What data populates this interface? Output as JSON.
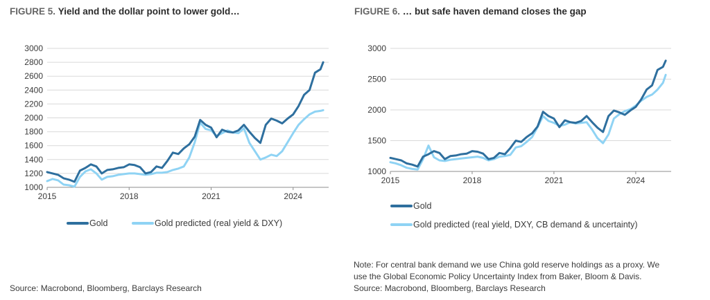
{
  "colors": {
    "gold": "#2e6f9e",
    "predicted": "#8fd3f4",
    "grid": "#d9d9d9",
    "axis": "#8c8c8c"
  },
  "figure5": {
    "number": "FIGURE 5.",
    "title": "Yield and the dollar point to lower gold…",
    "source": "Source: Macrobond, Bloomberg, Barclays Research"
  },
  "figure6": {
    "number": "FIGURE 6.",
    "title": "… but safe haven demand closes the gap",
    "note_line1": "Note: For central bank demand we use China gold reserve holdings as a proxy. We",
    "note_line2": "use the Global Economic Policy Uncertainty Index from Baker, Bloom & Davis.",
    "note_line3": "Source: Macrobond, Bloomberg, Barclays Research"
  },
  "chart_data": [
    {
      "type": "line",
      "title": "Yield and the dollar point to lower gold…",
      "xlabel": "",
      "ylabel": "",
      "xlim": [
        2015.0,
        2025.3
      ],
      "ylim": [
        1000,
        3000
      ],
      "yticks": [
        1000,
        1200,
        1400,
        1600,
        1800,
        2000,
        2200,
        2400,
        2600,
        2800,
        3000
      ],
      "xticks": [
        2015,
        2018,
        2021,
        2024
      ],
      "grid": true,
      "legend_position": "bottom",
      "series": [
        {
          "name": "Gold",
          "x": [
            2015.0,
            2015.2,
            2015.4,
            2015.6,
            2015.8,
            2016.0,
            2016.2,
            2016.4,
            2016.6,
            2016.8,
            2017.0,
            2017.2,
            2017.4,
            2017.6,
            2017.8,
            2018.0,
            2018.2,
            2018.4,
            2018.6,
            2018.8,
            2019.0,
            2019.2,
            2019.4,
            2019.6,
            2019.8,
            2020.0,
            2020.2,
            2020.4,
            2020.6,
            2020.8,
            2021.0,
            2021.2,
            2021.4,
            2021.6,
            2021.8,
            2022.0,
            2022.2,
            2022.4,
            2022.6,
            2022.8,
            2023.0,
            2023.2,
            2023.4,
            2023.6,
            2023.8,
            2024.0,
            2024.2,
            2024.4,
            2024.6,
            2024.8,
            2025.0,
            2025.1
          ],
          "values": [
            1220,
            1200,
            1180,
            1130,
            1110,
            1080,
            1240,
            1280,
            1330,
            1300,
            1200,
            1250,
            1260,
            1280,
            1290,
            1330,
            1320,
            1290,
            1200,
            1220,
            1300,
            1280,
            1380,
            1500,
            1480,
            1560,
            1620,
            1730,
            1970,
            1900,
            1860,
            1720,
            1830,
            1800,
            1790,
            1820,
            1900,
            1800,
            1710,
            1640,
            1900,
            1990,
            1960,
            1920,
            1990,
            2050,
            2170,
            2330,
            2400,
            2650,
            2700,
            2800
          ]
        },
        {
          "name": "Gold predicted (real yield & DXY)",
          "x": [
            2015.0,
            2015.2,
            2015.4,
            2015.6,
            2015.8,
            2016.0,
            2016.2,
            2016.4,
            2016.6,
            2016.8,
            2017.0,
            2017.2,
            2017.4,
            2017.6,
            2017.8,
            2018.0,
            2018.2,
            2018.4,
            2018.6,
            2018.8,
            2019.0,
            2019.2,
            2019.4,
            2019.6,
            2019.8,
            2020.0,
            2020.2,
            2020.4,
            2020.6,
            2020.8,
            2021.0,
            2021.2,
            2021.4,
            2021.6,
            2021.8,
            2022.0,
            2022.2,
            2022.4,
            2022.6,
            2022.8,
            2023.0,
            2023.2,
            2023.4,
            2023.6,
            2023.8,
            2024.0,
            2024.2,
            2024.4,
            2024.6,
            2024.8,
            2025.0,
            2025.1
          ],
          "values": [
            1090,
            1120,
            1100,
            1040,
            1030,
            1010,
            1150,
            1230,
            1260,
            1200,
            1110,
            1150,
            1160,
            1180,
            1190,
            1200,
            1200,
            1190,
            1180,
            1190,
            1210,
            1210,
            1220,
            1250,
            1270,
            1300,
            1430,
            1650,
            1930,
            1840,
            1820,
            1740,
            1780,
            1820,
            1790,
            1780,
            1850,
            1640,
            1520,
            1400,
            1430,
            1470,
            1450,
            1520,
            1650,
            1780,
            1900,
            1980,
            2050,
            2090,
            2100,
            2110
          ]
        }
      ]
    },
    {
      "type": "line",
      "title": "… but safe haven demand closes the gap",
      "xlabel": "",
      "ylabel": "",
      "xlim": [
        2015.0,
        2025.3
      ],
      "ylim": [
        1000,
        3000
      ],
      "yticks": [
        1000,
        1500,
        2000,
        2500,
        3000
      ],
      "xticks": [
        2015,
        2018,
        2021,
        2024
      ],
      "grid": true,
      "legend_position": "bottom",
      "series": [
        {
          "name": "Gold",
          "x": [
            2015.0,
            2015.2,
            2015.4,
            2015.6,
            2015.8,
            2016.0,
            2016.2,
            2016.4,
            2016.6,
            2016.8,
            2017.0,
            2017.2,
            2017.4,
            2017.6,
            2017.8,
            2018.0,
            2018.2,
            2018.4,
            2018.6,
            2018.8,
            2019.0,
            2019.2,
            2019.4,
            2019.6,
            2019.8,
            2020.0,
            2020.2,
            2020.4,
            2020.6,
            2020.8,
            2021.0,
            2021.2,
            2021.4,
            2021.6,
            2021.8,
            2022.0,
            2022.2,
            2022.4,
            2022.6,
            2022.8,
            2023.0,
            2023.2,
            2023.4,
            2023.6,
            2023.8,
            2024.0,
            2024.2,
            2024.4,
            2024.6,
            2024.8,
            2025.0,
            2025.1
          ],
          "values": [
            1220,
            1200,
            1180,
            1130,
            1110,
            1080,
            1240,
            1280,
            1330,
            1300,
            1200,
            1250,
            1260,
            1280,
            1290,
            1330,
            1320,
            1290,
            1200,
            1220,
            1300,
            1280,
            1380,
            1500,
            1480,
            1560,
            1620,
            1730,
            1970,
            1900,
            1860,
            1720,
            1830,
            1800,
            1790,
            1820,
            1900,
            1800,
            1710,
            1640,
            1900,
            1990,
            1960,
            1920,
            1990,
            2050,
            2170,
            2330,
            2400,
            2650,
            2700,
            2800
          ]
        },
        {
          "name": "Gold predicted (real yield, DXY, CB demand & uncertainty)",
          "x": [
            2015.0,
            2015.2,
            2015.4,
            2015.6,
            2015.8,
            2016.0,
            2016.2,
            2016.4,
            2016.6,
            2016.8,
            2017.0,
            2017.2,
            2017.4,
            2017.6,
            2017.8,
            2018.0,
            2018.2,
            2018.4,
            2018.6,
            2018.8,
            2019.0,
            2019.2,
            2019.4,
            2019.6,
            2019.8,
            2020.0,
            2020.2,
            2020.4,
            2020.6,
            2020.8,
            2021.0,
            2021.2,
            2021.4,
            2021.6,
            2021.8,
            2022.0,
            2022.2,
            2022.4,
            2022.6,
            2022.8,
            2023.0,
            2023.2,
            2023.4,
            2023.6,
            2023.8,
            2024.0,
            2024.2,
            2024.4,
            2024.6,
            2024.8,
            2025.0,
            2025.1
          ],
          "values": [
            1150,
            1130,
            1100,
            1060,
            1040,
            1030,
            1200,
            1420,
            1230,
            1180,
            1170,
            1190,
            1200,
            1210,
            1220,
            1230,
            1240,
            1220,
            1180,
            1200,
            1240,
            1250,
            1270,
            1390,
            1410,
            1480,
            1560,
            1720,
            1900,
            1820,
            1790,
            1740,
            1760,
            1800,
            1780,
            1790,
            1800,
            1680,
            1540,
            1460,
            1600,
            1860,
            1930,
            1980,
            2010,
            2070,
            2150,
            2210,
            2250,
            2330,
            2440,
            2570
          ]
        }
      ]
    }
  ]
}
